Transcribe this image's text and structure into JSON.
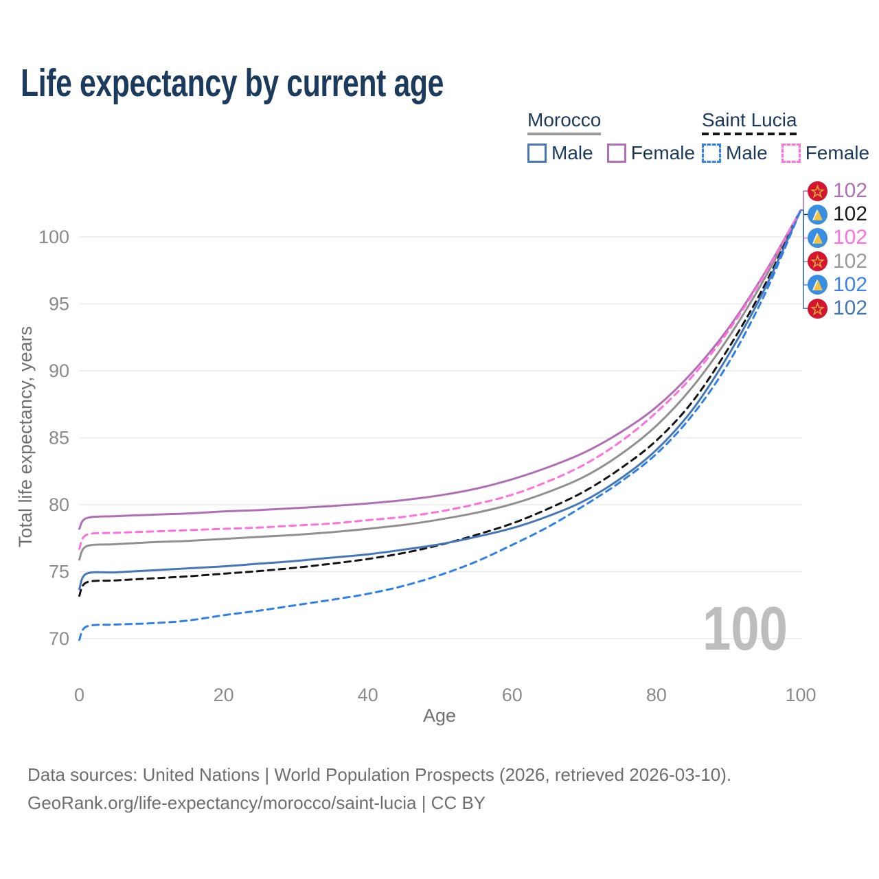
{
  "title": "Life expectancy by current age",
  "watermark": "100",
  "legend": {
    "groups": [
      {
        "country": "Morocco",
        "underline_style": "solid",
        "underline_color": "#999999",
        "items": [
          {
            "label": "Male",
            "color": "#4577b8",
            "dashed": false
          },
          {
            "label": "Female",
            "color": "#b06fb5",
            "dashed": false
          }
        ]
      },
      {
        "country": "Saint Lucia",
        "underline_style": "dashed",
        "underline_color": "#141414",
        "items": [
          {
            "label": "Male",
            "color": "#2f80e8",
            "dashed": true
          },
          {
            "label": "Female",
            "color": "#ff70dd",
            "dashed": true
          }
        ]
      }
    ]
  },
  "end_labels": [
    {
      "value": "102",
      "series": "Morocco Female",
      "flag": "morocco",
      "color": "#b06fb5"
    },
    {
      "value": "102",
      "series": "Saint Lucia Both sexes",
      "flag": "saint-lucia",
      "color": "#1a1a1a"
    },
    {
      "value": "102",
      "series": "Saint Lucia Female",
      "flag": "saint-lucia",
      "color": "#ff70dd"
    },
    {
      "value": "102",
      "series": "Morocco Both sexes",
      "flag": "morocco",
      "color": "#9a9a9a"
    },
    {
      "value": "102",
      "series": "Saint Lucia Male",
      "flag": "saint-lucia",
      "color": "#3d82ec"
    },
    {
      "value": "102",
      "series": "Morocco Male",
      "flag": "morocco",
      "color": "#4577b8"
    }
  ],
  "chart_data": {
    "type": "line",
    "title": "Life expectancy by current age",
    "xlabel": "Age",
    "ylabel": "Total life expectancy, years",
    "xlim": [
      0,
      100
    ],
    "ylim": [
      69,
      103
    ],
    "xticks": [
      0,
      20,
      40,
      60,
      80,
      100
    ],
    "yticks": [
      70,
      75,
      80,
      85,
      90,
      95,
      100
    ],
    "grid": "horizontal",
    "legend_position": "top-right",
    "end_value_label": "102",
    "series": [
      {
        "name": "Morocco Both sexes",
        "color": "#909090",
        "dash": false,
        "points": [
          [
            0,
            75.9
          ],
          [
            1,
            76.9
          ],
          [
            5,
            77.05
          ],
          [
            10,
            77.2
          ],
          [
            15,
            77.3
          ],
          [
            20,
            77.45
          ],
          [
            25,
            77.6
          ],
          [
            30,
            77.75
          ],
          [
            35,
            77.95
          ],
          [
            40,
            78.2
          ],
          [
            45,
            78.5
          ],
          [
            50,
            78.9
          ],
          [
            55,
            79.4
          ],
          [
            60,
            80.05
          ],
          [
            65,
            80.95
          ],
          [
            70,
            82.1
          ],
          [
            75,
            83.75
          ],
          [
            80,
            85.9
          ],
          [
            85,
            88.8
          ],
          [
            90,
            92.5
          ],
          [
            95,
            96.9
          ],
          [
            100,
            102
          ]
        ]
      },
      {
        "name": "Morocco Female",
        "color": "#b06fb5",
        "dash": false,
        "points": [
          [
            0,
            78.2
          ],
          [
            1,
            79.0
          ],
          [
            5,
            79.15
          ],
          [
            10,
            79.25
          ],
          [
            15,
            79.35
          ],
          [
            20,
            79.5
          ],
          [
            25,
            79.6
          ],
          [
            30,
            79.75
          ],
          [
            35,
            79.9
          ],
          [
            40,
            80.1
          ],
          [
            45,
            80.35
          ],
          [
            50,
            80.7
          ],
          [
            55,
            81.2
          ],
          [
            60,
            81.9
          ],
          [
            65,
            82.8
          ],
          [
            70,
            83.9
          ],
          [
            75,
            85.4
          ],
          [
            80,
            87.3
          ],
          [
            85,
            89.9
          ],
          [
            90,
            93.2
          ],
          [
            95,
            97.3
          ],
          [
            100,
            102
          ]
        ]
      },
      {
        "name": "Saint Lucia Both sexes",
        "color": "#141414",
        "dash": true,
        "points": [
          [
            0,
            73.2
          ],
          [
            1,
            74.2
          ],
          [
            5,
            74.35
          ],
          [
            10,
            74.5
          ],
          [
            15,
            74.65
          ],
          [
            20,
            74.85
          ],
          [
            25,
            75.05
          ],
          [
            30,
            75.3
          ],
          [
            35,
            75.6
          ],
          [
            40,
            75.95
          ],
          [
            45,
            76.4
          ],
          [
            50,
            77.0
          ],
          [
            55,
            77.75
          ],
          [
            60,
            78.6
          ],
          [
            65,
            79.7
          ],
          [
            70,
            81.0
          ],
          [
            75,
            82.7
          ],
          [
            80,
            84.8
          ],
          [
            85,
            87.7
          ],
          [
            90,
            91.7
          ],
          [
            95,
            96.4
          ],
          [
            100,
            102
          ]
        ]
      },
      {
        "name": "Morocco Male",
        "color": "#4577b8",
        "dash": false,
        "points": [
          [
            0,
            73.7
          ],
          [
            1,
            74.85
          ],
          [
            5,
            74.95
          ],
          [
            10,
            75.1
          ],
          [
            15,
            75.25
          ],
          [
            20,
            75.4
          ],
          [
            25,
            75.6
          ],
          [
            30,
            75.8
          ],
          [
            35,
            76.05
          ],
          [
            40,
            76.3
          ],
          [
            45,
            76.65
          ],
          [
            50,
            77.05
          ],
          [
            55,
            77.6
          ],
          [
            60,
            78.25
          ],
          [
            65,
            79.15
          ],
          [
            70,
            80.3
          ],
          [
            75,
            81.95
          ],
          [
            80,
            84.1
          ],
          [
            85,
            87.1
          ],
          [
            90,
            91.2
          ],
          [
            95,
            96.1
          ],
          [
            100,
            102
          ]
        ]
      },
      {
        "name": "Saint Lucia Female",
        "color": "#ff70dd",
        "dash": true,
        "points": [
          [
            0,
            76.7
          ],
          [
            1,
            77.75
          ],
          [
            5,
            77.9
          ],
          [
            10,
            78.0
          ],
          [
            15,
            78.1
          ],
          [
            20,
            78.2
          ],
          [
            25,
            78.3
          ],
          [
            30,
            78.45
          ],
          [
            35,
            78.6
          ],
          [
            40,
            78.85
          ],
          [
            45,
            79.1
          ],
          [
            50,
            79.5
          ],
          [
            55,
            80.05
          ],
          [
            60,
            80.75
          ],
          [
            65,
            81.75
          ],
          [
            70,
            83.0
          ],
          [
            75,
            84.7
          ],
          [
            80,
            86.9
          ],
          [
            85,
            89.6
          ],
          [
            90,
            93.0
          ],
          [
            95,
            97.2
          ],
          [
            100,
            102
          ]
        ]
      },
      {
        "name": "Saint Lucia Male",
        "color": "#2f80e8",
        "dash": true,
        "points": [
          [
            0,
            69.9
          ],
          [
            1,
            70.9
          ],
          [
            5,
            71.05
          ],
          [
            10,
            71.15
          ],
          [
            15,
            71.35
          ],
          [
            20,
            71.75
          ],
          [
            25,
            72.1
          ],
          [
            30,
            72.5
          ],
          [
            35,
            72.9
          ],
          [
            40,
            73.35
          ],
          [
            45,
            73.95
          ],
          [
            50,
            74.75
          ],
          [
            55,
            75.75
          ],
          [
            60,
            77.0
          ],
          [
            65,
            78.35
          ],
          [
            70,
            79.95
          ],
          [
            75,
            81.7
          ],
          [
            80,
            83.8
          ],
          [
            85,
            86.7
          ],
          [
            90,
            90.6
          ],
          [
            95,
            95.7
          ],
          [
            100,
            102
          ]
        ]
      }
    ]
  },
  "footer": {
    "line1": "Data sources: United Nations | World Population Prospects (2026, retrieved 2026-03-10).",
    "line2": "GeoRank.org/life-expectancy/morocco/saint-lucia | CC BY"
  }
}
